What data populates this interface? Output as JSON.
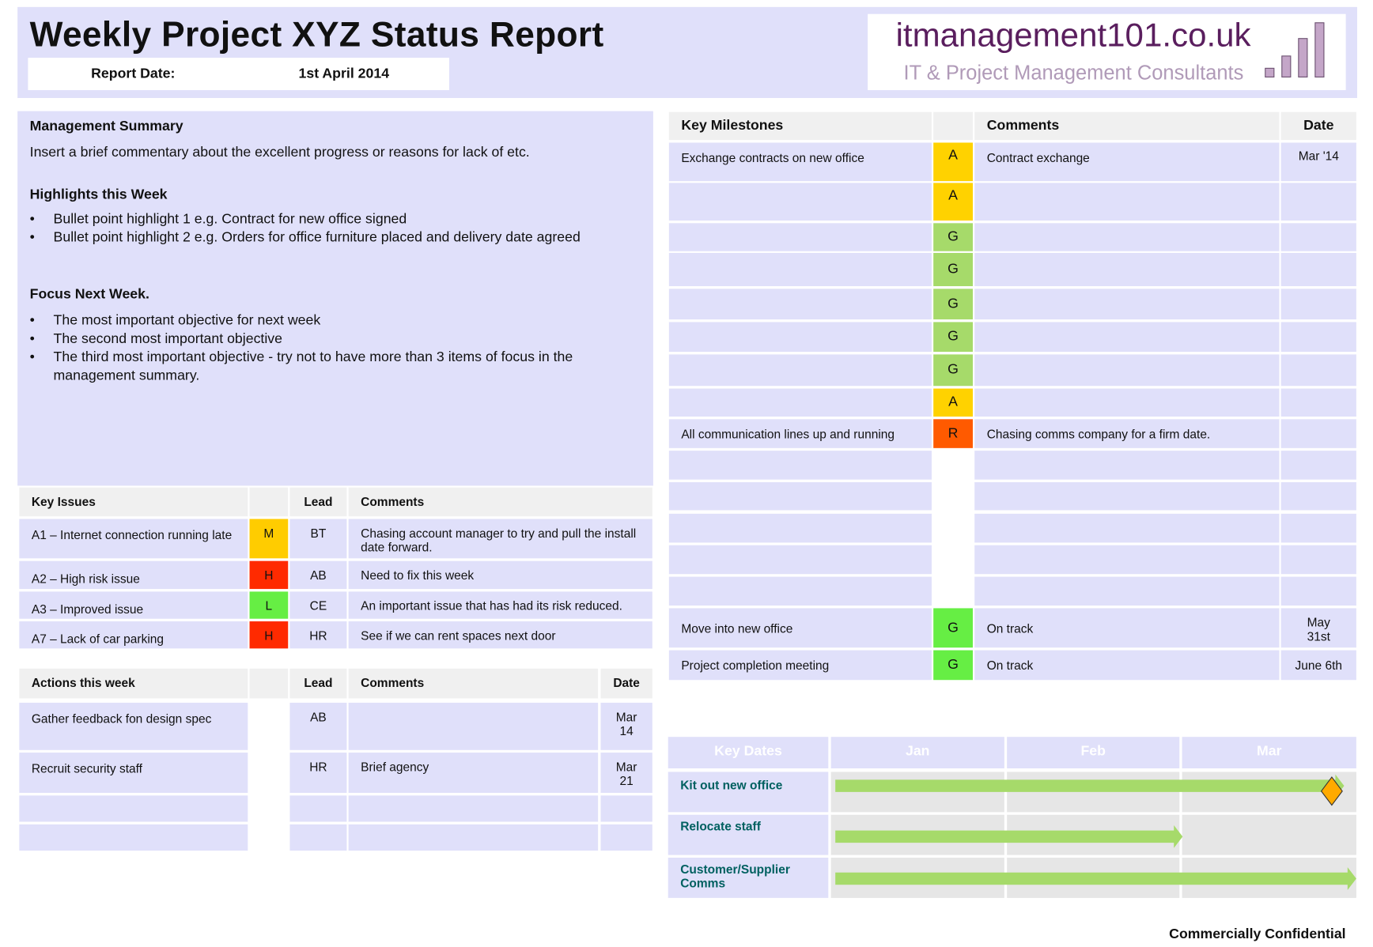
{
  "header": {
    "title": "Weekly Project XYZ Status Report",
    "report_date_label": "Report Date:",
    "report_date": "1st April 2014",
    "logo_name": "itmanagement101.co.uk",
    "logo_tagline": "IT & Project Management Consultants"
  },
  "summary": {
    "heading": "Management Summary",
    "text": "Insert a brief commentary about the excellent  progress or reasons for lack of etc.",
    "highlights_heading": "Highlights this Week",
    "highlights": [
      "Bullet point highlight 1 e.g. Contract for new office signed",
      "Bullet point highlight 2 e.g. Orders for office furniture placed and delivery date agreed"
    ],
    "focus_heading": "Focus Next Week.",
    "focus": [
      "The most important objective for next week",
      "The second most important objective",
      "The third most important objective  - try not to have more than 3 items of focus in the management summary."
    ]
  },
  "issues": {
    "headers": [
      "Key Issues",
      "",
      "Lead",
      "Comments"
    ],
    "rows": [
      {
        "issue": "A1 – Internet connection running late",
        "risk": "M",
        "color": "#ffcc00",
        "lead": "BT",
        "comment": "Chasing account manager to try and pull the install date forward."
      },
      {
        "issue": "A2 – High risk issue",
        "risk": "H",
        "color": "#ff2a00",
        "lead": "AB",
        "comment": "Need to fix this week"
      },
      {
        "issue": "A3 – Improved issue",
        "risk": "L",
        "color": "#66ee44",
        "lead": "CE",
        "comment": "An important issue that has had its risk reduced."
      },
      {
        "issue": "A7 – Lack of car parking",
        "risk": "H",
        "color": "#ff2a00",
        "lead": "HR",
        "comment": "See if we can rent spaces next door"
      }
    ]
  },
  "actions": {
    "headers": [
      "Actions this week",
      "",
      "Lead",
      "Comments",
      "Date"
    ],
    "rows": [
      {
        "action": "Gather feedback fon design spec",
        "lead": "AB",
        "comment": "",
        "date": "Mar 14"
      },
      {
        "action": "Recruit security staff",
        "lead": "HR",
        "comment": "Brief agency",
        "date": "Mar 21"
      },
      {
        "action": "",
        "lead": "",
        "comment": "",
        "date": ""
      },
      {
        "action": "",
        "lead": "",
        "comment": "",
        "date": ""
      }
    ]
  },
  "milestones": {
    "headers": [
      "Key Milestones",
      "",
      "Comments",
      "Date"
    ],
    "rows": [
      {
        "name": "Exchange contracts on new office",
        "rag": "A",
        "color": "#ffd200",
        "comment": "Contract exchange",
        "date": "Mar '14"
      },
      {
        "name": "",
        "rag": "A",
        "color": "#ffd200",
        "comment": "",
        "date": ""
      },
      {
        "name": "",
        "rag": "G",
        "color": "#a6da6a",
        "comment": "",
        "date": ""
      },
      {
        "name": "",
        "rag": "G",
        "color": "#a6da6a",
        "comment": "",
        "date": ""
      },
      {
        "name": "",
        "rag": "G",
        "color": "#a6da6a",
        "comment": "",
        "date": ""
      },
      {
        "name": "",
        "rag": "G",
        "color": "#a6da6a",
        "comment": "",
        "date": ""
      },
      {
        "name": "",
        "rag": "G",
        "color": "#a6da6a",
        "comment": "",
        "date": ""
      },
      {
        "name": "",
        "rag": "A",
        "color": "#ffd200",
        "comment": "",
        "date": ""
      },
      {
        "name": "All communication lines up and running",
        "rag": "R",
        "color": "#ff5a00",
        "comment": "Chasing comms company for a firm date.",
        "date": ""
      },
      {
        "name": "",
        "rag": "",
        "color": "#ffffff",
        "comment": "",
        "date": ""
      },
      {
        "name": "",
        "rag": "",
        "color": "#ffffff",
        "comment": "",
        "date": ""
      },
      {
        "name": "",
        "rag": "",
        "color": "#ffffff",
        "comment": "",
        "date": ""
      },
      {
        "name": "",
        "rag": "",
        "color": "#ffffff",
        "comment": "",
        "date": ""
      },
      {
        "name": "",
        "rag": "",
        "color": "#ffffff",
        "comment": "",
        "date": ""
      },
      {
        "name": "Move into new office",
        "rag": "G",
        "color": "#66ee44",
        "comment": "On track",
        "date": "May 31st"
      },
      {
        "name": "Project completion meeting",
        "rag": "G",
        "color": "#66ee44",
        "comment": "On track",
        "date": "June 6th"
      }
    ]
  },
  "key_dates": {
    "headers": [
      "Key Dates",
      "Jan",
      "Feb",
      "Mar"
    ],
    "rows": [
      {
        "label": "Kit out new office",
        "end_month": 2.93,
        "milestone": true
      },
      {
        "label": "Relocate staff",
        "end_month": 2.0,
        "milestone": false
      },
      {
        "label": "Customer/Supplier Comms",
        "end_month": 3.0,
        "milestone": false
      }
    ],
    "bar_color": "#a6da6a",
    "milestone_color": "#ffaa00"
  },
  "footer": "Commercially Confidential"
}
